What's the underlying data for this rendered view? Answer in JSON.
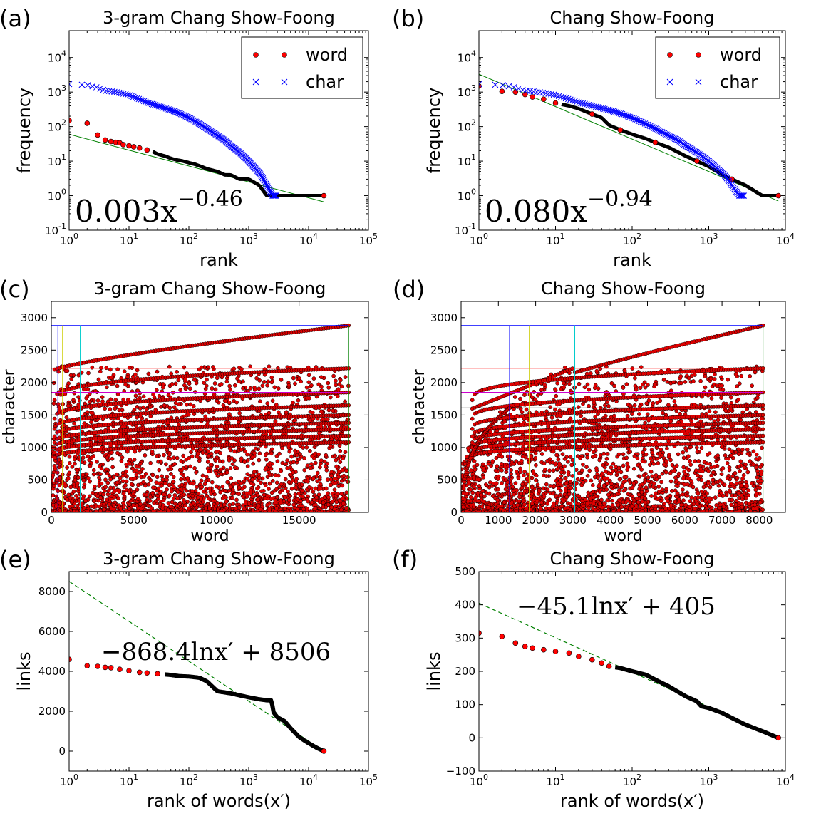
{
  "chart_data": [
    {
      "panel": "(a)",
      "type": "scatter",
      "scale": "loglog",
      "title": "3-gram Chang Show-Foong",
      "xlabel": "rank",
      "ylabel": "frequency",
      "xlim": [
        1,
        100000
      ],
      "ylim": [
        0.1,
        60000
      ],
      "xticks": [
        1,
        10,
        100,
        1000,
        10000,
        100000
      ],
      "yticks": [
        0.1,
        1,
        10,
        100,
        1000,
        10000
      ],
      "legend": {
        "position": "top-right",
        "entries": [
          "word",
          "char"
        ]
      },
      "series": [
        {
          "name": "word",
          "marker": "circle",
          "color": "#ff0000",
          "x": [
            1,
            2,
            3,
            4,
            5,
            6,
            7,
            8,
            10,
            12,
            15,
            20,
            25,
            30,
            40,
            50,
            60,
            80,
            100,
            130,
            160,
            200,
            300,
            400,
            500,
            700,
            1000,
            1500,
            2000,
            3000,
            5000,
            10000,
            18000
          ],
          "y": [
            150,
            125,
            57,
            41,
            37,
            35,
            34,
            30,
            28,
            26,
            24,
            21,
            19,
            16,
            14,
            12,
            11,
            10,
            9,
            8,
            7,
            6,
            5,
            4,
            4,
            3,
            3,
            2,
            1,
            1,
            1,
            1,
            1
          ]
        },
        {
          "name": "char",
          "marker": "x",
          "color": "#0000ff",
          "x": [
            1,
            2,
            3,
            4,
            5,
            7,
            10,
            15,
            20,
            30,
            50,
            70,
            100,
            150,
            200,
            300,
            400,
            500,
            700,
            1000,
            1300,
            1600,
            2000,
            2500,
            2870
          ],
          "y": [
            1700,
            1600,
            1350,
            1100,
            1050,
            950,
            820,
            620,
            500,
            400,
            300,
            240,
            180,
            120,
            88,
            55,
            40,
            28,
            18,
            10,
            6,
            4,
            2,
            1,
            1
          ]
        }
      ],
      "fit": {
        "label": "0.003x^-0.46",
        "text_main": "0.003x",
        "text_exp": "−0.46",
        "a": 60,
        "b": -0.46,
        "color": "#008000"
      }
    },
    {
      "panel": "(b)",
      "type": "scatter",
      "scale": "loglog",
      "title": "Chang Show-Foong",
      "xlabel": "rank",
      "ylabel": "frequency",
      "xlim": [
        1,
        10000
      ],
      "ylim": [
        0.1,
        60000
      ],
      "xticks": [
        1,
        10,
        100,
        1000,
        10000
      ],
      "yticks": [
        0.1,
        1,
        10,
        100,
        1000,
        10000
      ],
      "legend": {
        "position": "top-right",
        "entries": [
          "word",
          "char"
        ]
      },
      "series": [
        {
          "name": "word",
          "marker": "circle",
          "color": "#ff0000",
          "x": [
            1,
            2,
            3,
            4,
            5,
            7,
            10,
            15,
            20,
            30,
            40,
            50,
            70,
            100,
            150,
            200,
            300,
            500,
            700,
            1000,
            1500,
            2000,
            3000,
            5000,
            8100
          ],
          "y": [
            1500,
            1050,
            1000,
            850,
            720,
            620,
            480,
            400,
            330,
            230,
            180,
            110,
            80,
            60,
            45,
            35,
            25,
            14,
            10,
            7,
            4,
            3,
            2,
            1,
            1
          ]
        },
        {
          "name": "char",
          "marker": "x",
          "color": "#0000ff",
          "x": [
            1,
            2,
            3,
            4,
            5,
            7,
            10,
            15,
            20,
            30,
            50,
            70,
            100,
            150,
            200,
            300,
            400,
            500,
            700,
            1000,
            1300,
            1600,
            2000,
            2500,
            2870
          ],
          "y": [
            1700,
            1600,
            1350,
            1100,
            1050,
            950,
            820,
            620,
            500,
            400,
            300,
            240,
            180,
            120,
            88,
            55,
            40,
            28,
            18,
            10,
            6,
            4,
            2,
            1,
            1
          ]
        }
      ],
      "fit": {
        "label": "0.080x^-0.94",
        "text_main": "0.080x",
        "text_exp": "−0.94",
        "a": 3300,
        "b": -0.94,
        "color": "#008000"
      }
    },
    {
      "panel": "(c)",
      "type": "scatter",
      "scale": "linear",
      "title": "3-gram Chang Show-Foong",
      "xlabel": "word",
      "ylabel": "character",
      "xlim": [
        0,
        19200
      ],
      "ylim": [
        0,
        3250
      ],
      "xticks": [
        0,
        5000,
        10000,
        15000
      ],
      "xticklabels": [
        "0",
        "5000",
        "10000",
        "15000"
      ],
      "yticks": [
        0,
        500,
        1000,
        1500,
        2000,
        2500,
        3000
      ],
      "yticklabels": [
        "0",
        "500",
        "1000",
        "1500",
        "2000",
        "2500",
        "3000"
      ],
      "nwords": 18000,
      "hlines": [
        {
          "y": 2880,
          "color": "#0000ff"
        },
        {
          "y": 2220,
          "color": "#ff0000"
        },
        {
          "y": 1850,
          "color": "#cc00cc"
        }
      ],
      "vlines": [
        {
          "x": 400,
          "color": "#0000ff"
        },
        {
          "x": 680,
          "color": "#cccc00"
        },
        {
          "x": 1750,
          "color": "#00cccc"
        },
        {
          "x": 18000,
          "color": "#008000"
        }
      ]
    },
    {
      "panel": "(d)",
      "type": "scatter",
      "scale": "linear",
      "title": "Chang Show-Foong",
      "xlabel": "word",
      "ylabel": "character",
      "xlim": [
        0,
        8700
      ],
      "ylim": [
        0,
        3250
      ],
      "xticks": [
        0,
        1000,
        2000,
        3000,
        4000,
        5000,
        6000,
        7000,
        8000
      ],
      "xticklabels": [
        "0",
        "1000",
        "2000",
        "3000",
        "4000",
        "5000",
        "6000",
        "7000",
        "8000"
      ],
      "yticks": [
        0,
        500,
        1000,
        1500,
        2000,
        2500,
        3000
      ],
      "yticklabels": [
        "0",
        "500",
        "1000",
        "1500",
        "2000",
        "2500",
        "3000"
      ],
      "nwords": 8100,
      "hlines": [
        {
          "y": 2880,
          "color": "#0000ff"
        },
        {
          "y": 2220,
          "color": "#ff0000"
        },
        {
          "y": 1850,
          "color": "#cc00cc"
        },
        {
          "y": 1610,
          "color": "#000000"
        }
      ],
      "vlines": [
        {
          "x": 1300,
          "color": "#0000ff"
        },
        {
          "x": 1830,
          "color": "#cccc00"
        },
        {
          "x": 3050,
          "color": "#00cccc"
        },
        {
          "x": 8100,
          "color": "#008000"
        }
      ]
    },
    {
      "panel": "(e)",
      "type": "scatter",
      "scale": "semilogx",
      "title": "3-gram Chang Show-Foong",
      "xlabel": "rank of words(x′)",
      "ylabel": "links",
      "xlim": [
        1,
        100000
      ],
      "ylim": [
        -1000,
        9000
      ],
      "xticks": [
        1,
        10,
        100,
        1000,
        10000,
        100000
      ],
      "yticks": [
        0,
        2000,
        4000,
        6000,
        8000
      ],
      "yticklabels": [
        "0",
        "2000",
        "4000",
        "6000",
        "8000"
      ],
      "series": [
        {
          "name": "word",
          "color": "#ff0000",
          "x": [
            1,
            2,
            3,
            4,
            5,
            7,
            10,
            15,
            20,
            30,
            50,
            70,
            100,
            150,
            200,
            300,
            500,
            700,
            1000,
            1500,
            2000,
            2400,
            2600,
            3000,
            4000,
            5000,
            7000,
            10000,
            14000,
            18000
          ],
          "y": [
            4600,
            4280,
            4250,
            4200,
            4180,
            4100,
            4030,
            3950,
            3920,
            3880,
            3820,
            3760,
            3740,
            3680,
            3500,
            3000,
            2900,
            2800,
            2700,
            2600,
            2550,
            2550,
            1950,
            1700,
            1500,
            1150,
            700,
            400,
            150,
            0
          ]
        }
      ],
      "fit": {
        "label": "−868.4lnx′ + 8506",
        "a": -868.4,
        "b": 8506,
        "color": "#008000"
      }
    },
    {
      "panel": "(f)",
      "type": "scatter",
      "scale": "semilogx",
      "title": "Chang Show-Foong",
      "xlabel": "rank of words(x′)",
      "ylabel": "links",
      "xlim": [
        1,
        10000
      ],
      "ylim": [
        -100,
        500
      ],
      "xticks": [
        1,
        10,
        100,
        1000,
        10000
      ],
      "yticks": [
        -100,
        0,
        100,
        200,
        300,
        400,
        500
      ],
      "yticklabels": [
        "−100",
        "0",
        "100",
        "200",
        "300",
        "400",
        "500"
      ],
      "series": [
        {
          "name": "word",
          "color": "#ff0000",
          "x": [
            1,
            2,
            3,
            4,
            5,
            7,
            10,
            15,
            20,
            30,
            40,
            50,
            70,
            100,
            150,
            200,
            300,
            500,
            700,
            800,
            1000,
            1500,
            2000,
            3000,
            5000,
            8100
          ],
          "y": [
            315,
            305,
            285,
            275,
            270,
            265,
            260,
            255,
            245,
            235,
            225,
            215,
            210,
            200,
            190,
            175,
            155,
            125,
            110,
            95,
            90,
            75,
            60,
            40,
            20,
            0
          ]
        }
      ],
      "fit": {
        "label": "−45.1lnx′ + 405",
        "a": -45.1,
        "b": 405,
        "color": "#008000"
      }
    }
  ]
}
